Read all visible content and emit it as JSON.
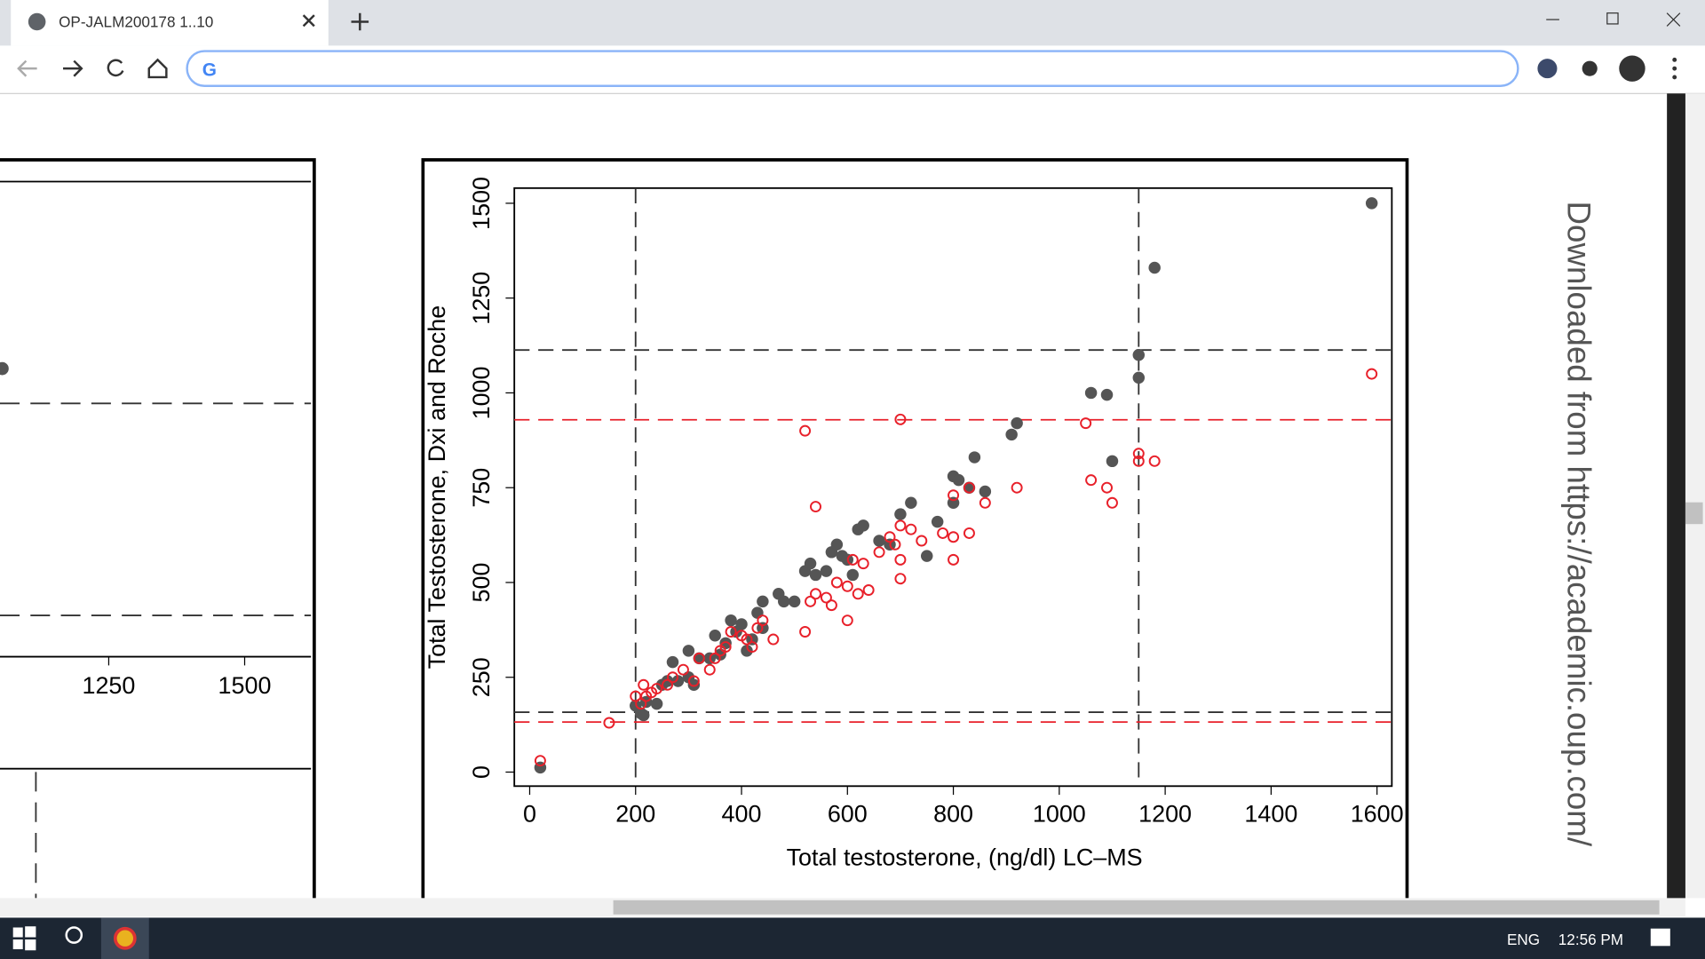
{
  "browser": {
    "tab_title": "OP-JALM200178 1..10",
    "language": "ENG",
    "clock": "12:56 PM"
  },
  "side_note": "Downloaded from https://academic.oup.com/",
  "left_chart": {
    "xtick_labels": [
      "1250",
      "1500"
    ]
  },
  "chart_data": {
    "type": "scatter",
    "x_label": "Total testosterone, (ng/dl) LC–MS",
    "y_label": "Total Testosterone, Dxi and Roche",
    "xlim": [
      -29,
      1628
    ],
    "ylim": [
      -37,
      1540
    ],
    "xticks": [
      0,
      200,
      400,
      600,
      800,
      1000,
      1200,
      1400,
      1600
    ],
    "yticks": [
      0,
      250,
      500,
      750,
      1000,
      1250,
      1500
    ],
    "reference_lines": {
      "x": [
        {
          "value": 200,
          "color": "#333333"
        },
        {
          "value": 1150,
          "color": "#333333"
        }
      ],
      "y": [
        {
          "value": 1113,
          "color": "#333333"
        },
        {
          "value": 929,
          "color": "#e8202a"
        },
        {
          "value": 158,
          "color": "#333333"
        },
        {
          "value": 132,
          "color": "#e8202a"
        }
      ]
    },
    "series": [
      {
        "color": "#555555",
        "filled": true,
        "x": [
          20,
          200,
          210,
          215,
          220,
          240,
          250,
          260,
          270,
          280,
          300,
          310,
          300,
          320,
          340,
          350,
          360,
          370,
          380,
          390,
          400,
          410,
          420,
          430,
          440,
          440,
          470,
          480,
          500,
          520,
          530,
          540,
          560,
          570,
          580,
          590,
          600,
          610,
          620,
          630,
          660,
          680,
          700,
          720,
          750,
          770,
          800,
          800,
          810,
          830,
          840,
          860,
          910,
          920,
          1060,
          1090,
          1100,
          1150,
          1150,
          1180,
          1590
        ],
        "values": [
          12,
          175,
          155,
          150,
          185,
          180,
          230,
          240,
          290,
          240,
          250,
          230,
          320,
          300,
          300,
          360,
          310,
          340,
          400,
          370,
          390,
          320,
          350,
          420,
          450,
          380,
          470,
          450,
          450,
          530,
          550,
          520,
          530,
          580,
          600,
          570,
          560,
          520,
          640,
          650,
          610,
          600,
          680,
          710,
          570,
          660,
          780,
          710,
          770,
          750,
          830,
          740,
          890,
          920,
          1000,
          995,
          820,
          1100,
          1040,
          1330,
          1500
        ]
      },
      {
        "color": "#e8202a",
        "filled": false,
        "x": [
          20,
          150,
          200,
          210,
          215,
          220,
          230,
          240,
          260,
          270,
          290,
          310,
          320,
          340,
          350,
          360,
          370,
          380,
          400,
          410,
          420,
          430,
          440,
          460,
          520,
          520,
          530,
          540,
          540,
          560,
          570,
          580,
          600,
          600,
          610,
          620,
          630,
          640,
          660,
          680,
          690,
          700,
          700,
          700,
          700,
          720,
          740,
          780,
          800,
          800,
          800,
          830,
          830,
          860,
          920,
          1050,
          1060,
          1090,
          1100,
          1150,
          1150,
          1180,
          1590
        ],
        "values": [
          30,
          130,
          200,
          180,
          230,
          200,
          210,
          220,
          230,
          250,
          270,
          240,
          300,
          270,
          300,
          320,
          330,
          370,
          360,
          350,
          330,
          380,
          400,
          350,
          370,
          900,
          450,
          700,
          470,
          460,
          440,
          500,
          400,
          490,
          560,
          470,
          550,
          480,
          580,
          620,
          600,
          930,
          560,
          510,
          650,
          640,
          610,
          630,
          560,
          620,
          730,
          630,
          750,
          710,
          750,
          920,
          770,
          750,
          710,
          840,
          820,
          820,
          1050
        ]
      }
    ]
  }
}
